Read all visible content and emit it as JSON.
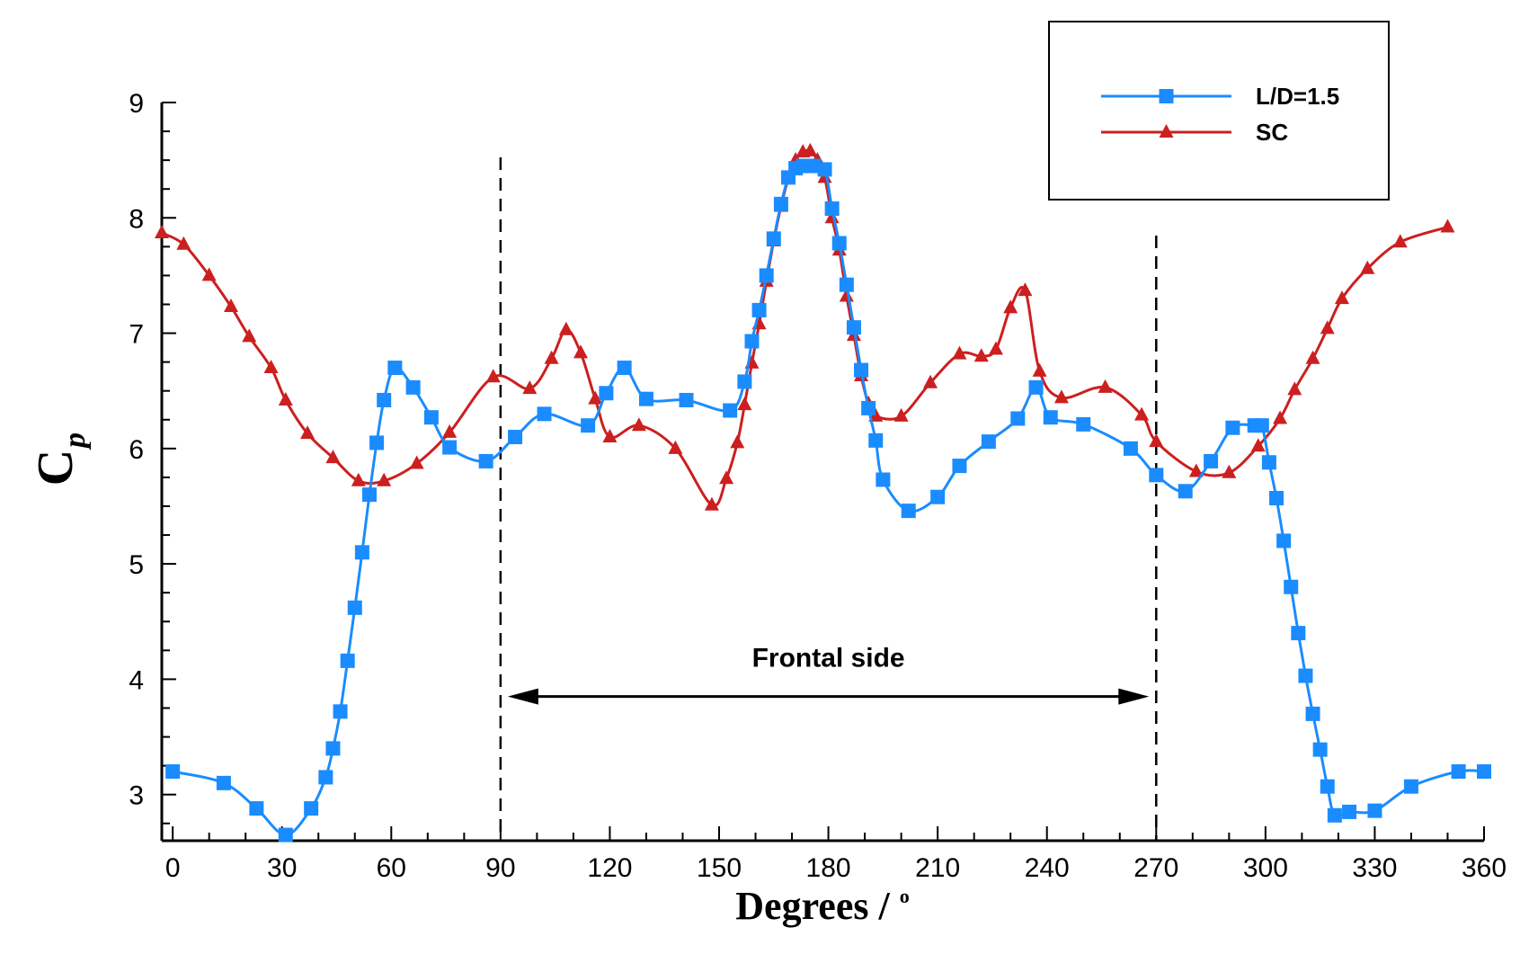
{
  "chart_data": {
    "type": "line",
    "xlabel": "Degrees / ",
    "xlabel_superscript": "o",
    "ylabel": "C",
    "ylabel_subscript": "p",
    "xlim": [
      -3,
      360
    ],
    "ylim": [
      2.6,
      9
    ],
    "x_ticks": [
      0,
      30,
      60,
      90,
      120,
      150,
      180,
      210,
      240,
      270,
      300,
      330,
      360
    ],
    "y_ticks": [
      3,
      4,
      5,
      6,
      7,
      8,
      9
    ],
    "grid": false,
    "legend_position": "top-right",
    "annotations": [
      {
        "text": "Frontal side",
        "type": "double-arrow",
        "x_start": 90,
        "x_end": 270,
        "y": 3.85
      },
      {
        "type": "vline-dashed",
        "x": 90
      },
      {
        "type": "vline-dashed",
        "x": 270
      }
    ],
    "series": [
      {
        "name": "L/D=1.5",
        "color": "#1a8cff",
        "marker": "square",
        "x": [
          0,
          14,
          23,
          31,
          38,
          42,
          44,
          46,
          48,
          50,
          52,
          54,
          56,
          58,
          61,
          66,
          71,
          76,
          86,
          94,
          102,
          114,
          119,
          124,
          130,
          141,
          153,
          157,
          159,
          161,
          163,
          165,
          167,
          169,
          171,
          173,
          176,
          179,
          181,
          183,
          185,
          187,
          189,
          191,
          193,
          195,
          202,
          210,
          216,
          224,
          232,
          237,
          241,
          250,
          263,
          270,
          278,
          285,
          291,
          297,
          299,
          301,
          303,
          305,
          307,
          309,
          311,
          313,
          315,
          317,
          319,
          323,
          330,
          340,
          353,
          360
        ],
        "y": [
          3.2,
          3.1,
          2.88,
          2.65,
          2.88,
          3.15,
          3.4,
          3.72,
          4.16,
          4.62,
          5.1,
          5.6,
          6.05,
          6.42,
          6.7,
          6.53,
          6.27,
          6.01,
          5.89,
          6.1,
          6.3,
          6.2,
          6.48,
          6.7,
          6.43,
          6.42,
          6.33,
          6.58,
          6.93,
          7.2,
          7.5,
          7.82,
          8.12,
          8.35,
          8.43,
          8.45,
          8.45,
          8.42,
          8.08,
          7.78,
          7.42,
          7.05,
          6.68,
          6.35,
          6.07,
          5.73,
          5.46,
          5.58,
          5.85,
          6.06,
          6.26,
          6.53,
          6.27,
          6.21,
          6.0,
          5.77,
          5.63,
          5.89,
          6.18,
          6.2,
          6.2,
          5.88,
          5.57,
          5.2,
          4.8,
          4.4,
          4.03,
          3.7,
          3.39,
          3.07,
          2.82,
          2.85,
          2.86,
          3.07,
          3.2,
          3.2
        ]
      },
      {
        "name": "SC",
        "color": "#cc1f1f",
        "marker": "triangle",
        "x": [
          -3,
          3,
          10,
          16,
          21,
          27,
          31,
          37,
          44,
          51,
          58,
          67,
          76,
          88,
          98,
          104,
          108,
          112,
          116,
          120,
          128,
          138,
          148,
          152,
          155,
          157,
          159,
          161,
          163,
          165,
          167,
          169,
          171,
          173,
          175,
          177,
          179,
          181,
          183,
          185,
          187,
          189,
          191,
          193,
          200,
          208,
          216,
          222,
          226,
          230,
          234,
          238,
          244,
          256,
          266,
          270,
          281,
          290,
          298,
          304,
          308,
          313,
          317,
          321,
          328,
          337,
          350
        ],
        "y": [
          7.87,
          7.77,
          7.5,
          7.23,
          6.97,
          6.7,
          6.42,
          6.13,
          5.92,
          5.72,
          5.72,
          5.87,
          6.14,
          6.62,
          6.52,
          6.78,
          7.03,
          6.83,
          6.43,
          6.1,
          6.2,
          6.0,
          5.51,
          5.74,
          6.05,
          6.38,
          6.74,
          7.08,
          7.45,
          7.8,
          8.1,
          8.34,
          8.5,
          8.57,
          8.58,
          8.5,
          8.35,
          8.0,
          7.72,
          7.32,
          6.98,
          6.63,
          6.39,
          6.28,
          6.28,
          6.57,
          6.82,
          6.8,
          6.86,
          7.22,
          7.37,
          6.67,
          6.44,
          6.53,
          6.29,
          6.06,
          5.8,
          5.79,
          6.02,
          6.26,
          6.51,
          6.78,
          7.04,
          7.3,
          7.56,
          7.79,
          7.92
        ]
      }
    ]
  }
}
